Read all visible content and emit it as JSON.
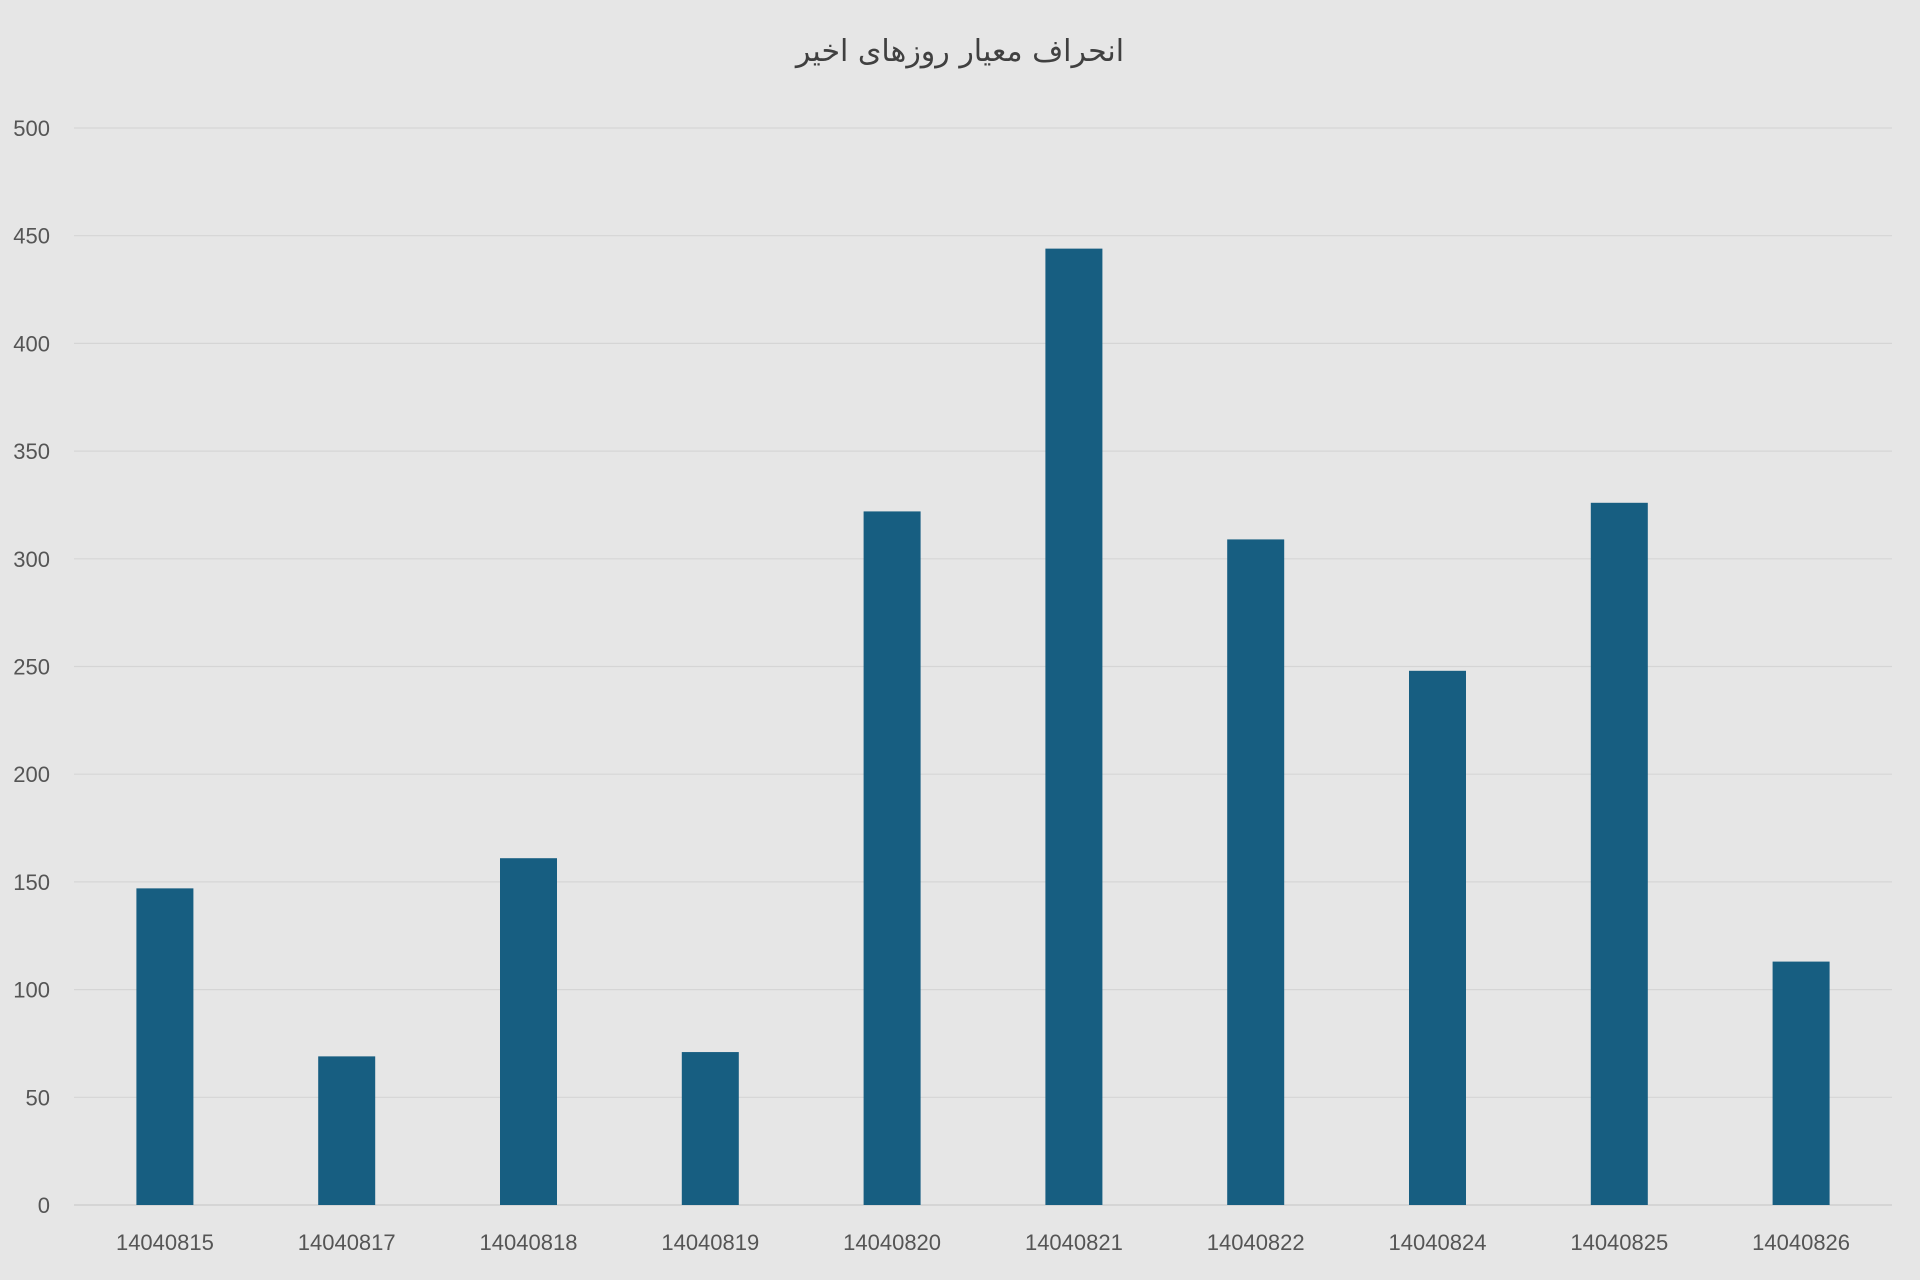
{
  "chart_data": {
    "type": "bar",
    "title": "انحراف معیار روزهای اخیر",
    "categories": [
      "14040815",
      "14040817",
      "14040818",
      "14040819",
      "14040820",
      "14040821",
      "14040822",
      "14040824",
      "14040825",
      "14040826"
    ],
    "values": [
      147,
      69,
      161,
      71,
      322,
      444,
      309,
      248,
      326,
      113
    ],
    "ylim": [
      0,
      500
    ],
    "yticks": [
      0,
      50,
      100,
      150,
      200,
      250,
      300,
      350,
      400,
      450,
      500
    ],
    "grid": true,
    "legend": "none",
    "bar_color": "#175e81",
    "background": "#e6e6e6"
  }
}
